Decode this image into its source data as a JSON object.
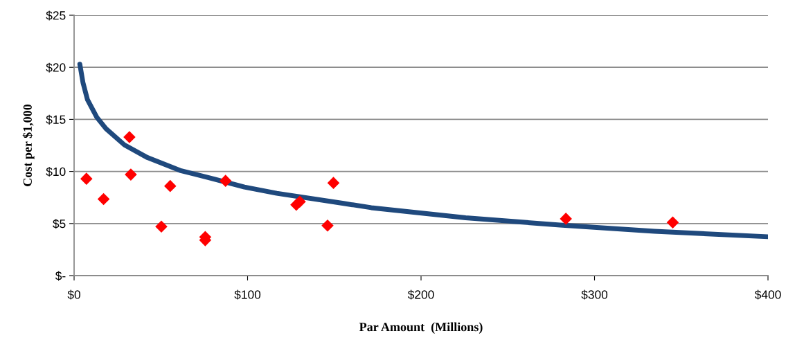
{
  "chart_data": {
    "type": "scatter",
    "xlabel": "Par Amount  (Millions)",
    "ylabel": "Cost per $1,000",
    "series": [
      {
        "type": "line",
        "color": "#1f497d",
        "marker": "none",
        "line_style": "solid",
        "x": [
          3.3,
          5.1,
          7.7,
          13.1,
          18.4,
          29.0,
          42.3,
          61,
          76.9,
          98.2,
          116.8,
          155.4,
          171.3,
          225.7,
          280.1,
          334.6,
          400
        ],
        "values": [
          20.3,
          18.55,
          16.9,
          15.2,
          14.1,
          12.55,
          11.33,
          10.1,
          9.44,
          8.5,
          7.9,
          6.93,
          6.52,
          5.55,
          4.85,
          4.25,
          3.73
        ]
      },
      {
        "color": "#ff0000",
        "marker": "diamond",
        "x": [
          7.1,
          17.0,
          31.9,
          32.7,
          50.3,
          55.4,
          75.6,
          75.6,
          87.3,
          128.1,
          130.1,
          146.1,
          149.5,
          283.5,
          345.1
        ],
        "values": [
          9.3,
          7.35,
          13.3,
          9.7,
          4.7,
          8.6,
          3.7,
          3.4,
          9.1,
          6.8,
          7.1,
          4.8,
          8.9,
          5.46,
          5.1
        ]
      }
    ],
    "xlim": [
      0,
      400
    ],
    "xticks": [
      {
        "value": 0,
        "label": "$0"
      },
      {
        "value": 100,
        "label": "$100"
      },
      {
        "value": 200,
        "label": "$200"
      },
      {
        "value": 300,
        "label": "$300"
      },
      {
        "value": 400,
        "label": "$400"
      }
    ],
    "ylim": [
      0,
      25
    ],
    "yticks": [
      {
        "value": 0,
        "label": "$-"
      },
      {
        "value": 5,
        "label": "$5"
      },
      {
        "value": 10,
        "label": "$10"
      },
      {
        "value": 15,
        "label": "$15"
      },
      {
        "value": 20,
        "label": "$20"
      },
      {
        "value": 25,
        "label": "$25"
      }
    ],
    "grid": "y"
  }
}
